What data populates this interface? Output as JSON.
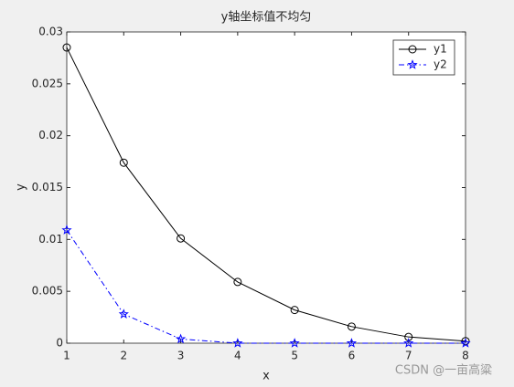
{
  "chart_data": {
    "type": "line",
    "title": "y轴坐标值不均匀",
    "xlabel": "x",
    "ylabel": "y",
    "x": [
      1,
      2,
      3,
      4,
      5,
      6,
      7,
      8
    ],
    "series": [
      {
        "name": "y1",
        "color": "#000000",
        "marker": "circle",
        "linestyle": "solid",
        "values": [
          0.0285,
          0.0174,
          0.0101,
          0.0059,
          0.0032,
          0.0016,
          0.0006,
          0.0002
        ]
      },
      {
        "name": "y2",
        "color": "#0000ff",
        "marker": "star",
        "linestyle": "dashdot",
        "values": [
          0.0109,
          0.0028,
          0.0004,
          0,
          0,
          0,
          0,
          0
        ]
      }
    ],
    "xlim": [
      1,
      8
    ],
    "xticks": [
      1,
      2,
      3,
      4,
      5,
      6,
      7,
      8
    ],
    "ylim": [
      0,
      0.03
    ],
    "yticks": [
      0,
      0.005,
      0.01,
      0.015,
      0.02,
      0.025,
      0.03
    ],
    "grid": false,
    "legend": "northeast",
    "watermark": "CSDN @一亩高粱"
  }
}
